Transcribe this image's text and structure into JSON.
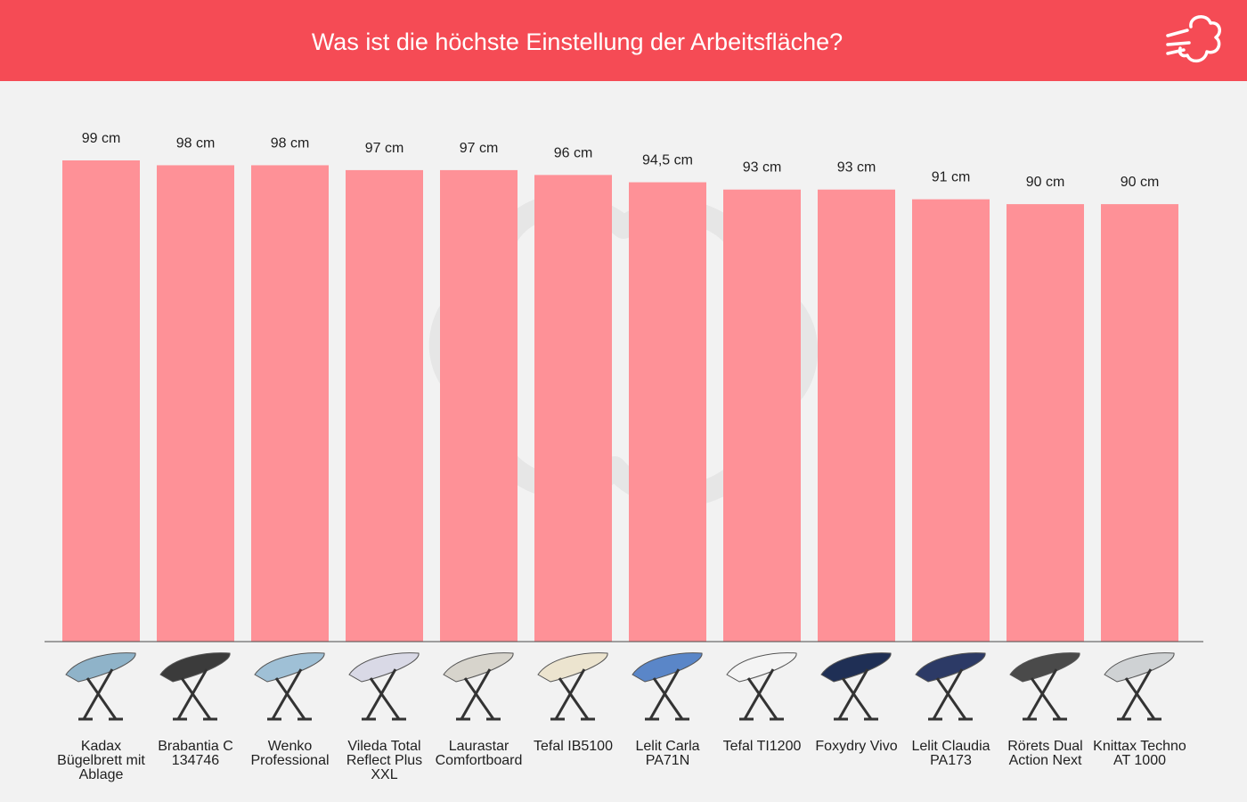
{
  "header": {
    "title": "Was ist die höchste Einstellung der Arbeitsfläche?",
    "logo_icon": "steam-cloud-icon",
    "background": "#f54b55"
  },
  "chart_data": {
    "type": "bar",
    "title": "Was ist die höchste Einstellung der Arbeitsfläche?",
    "xlabel": "",
    "ylabel": "",
    "unit": "cm",
    "ylim": [
      0,
      99
    ],
    "grid": false,
    "bar_color": "#fe9197",
    "categories": [
      "Kadax Bügelbrett mit Ablage",
      "Brabantia C 134746",
      "Wenko Professional",
      "Vileda Total Reflect Plus XXL",
      "Laurastar Comfortboard",
      "Tefal IB5100",
      "Lelit Carla PA71N",
      "Tefal TI1200",
      "Foxydry Vivo",
      "Lelit Claudia PA173",
      "Rörets Dual Action Next",
      "Knittax Techno AT 1000"
    ],
    "values": [
      99,
      98,
      98,
      97,
      97,
      96,
      94.5,
      93,
      93,
      91,
      90,
      90
    ],
    "value_labels": [
      "99 cm",
      "98 cm",
      "98 cm",
      "97 cm",
      "97 cm",
      "96 cm",
      "94,5 cm",
      "93 cm",
      "93 cm",
      "91 cm",
      "90 cm",
      "90 cm"
    ]
  },
  "products": [
    {
      "icon": "ironing-board-icon",
      "label": "Kadax Bügelbrett mit Ablage",
      "color": "#8fb3c9"
    },
    {
      "icon": "ironing-board-icon",
      "label": "Brabantia C 134746",
      "color": "#3b3b3b"
    },
    {
      "icon": "ironing-board-icon",
      "label": "Wenko Professional",
      "color": "#9fc0d6"
    },
    {
      "icon": "ironing-board-icon",
      "label": "Vileda Total Reflect Plus XXL",
      "color": "#d9d9e6"
    },
    {
      "icon": "ironing-board-icon",
      "label": "Laurastar Comfortboard",
      "color": "#d7d4cc"
    },
    {
      "icon": "ironing-board-icon",
      "label": "Tefal IB5100",
      "color": "#ece4cf"
    },
    {
      "icon": "ironing-board-icon",
      "label": "Lelit Carla PA71N",
      "color": "#5a86c8"
    },
    {
      "icon": "ironing-board-icon",
      "label": "Tefal TI1200",
      "color": "#f4f4f4"
    },
    {
      "icon": "ironing-board-icon",
      "label": "Foxydry Vivo",
      "color": "#1f2f55"
    },
    {
      "icon": "ironing-board-icon",
      "label": "Lelit Claudia PA173",
      "color": "#2c3a66"
    },
    {
      "icon": "ironing-board-icon",
      "label": "Rörets Dual Action Next",
      "color": "#4a4a4a"
    },
    {
      "icon": "ironing-board-icon",
      "label": "Knittax Techno AT 1000",
      "color": "#cfd2d4"
    }
  ]
}
